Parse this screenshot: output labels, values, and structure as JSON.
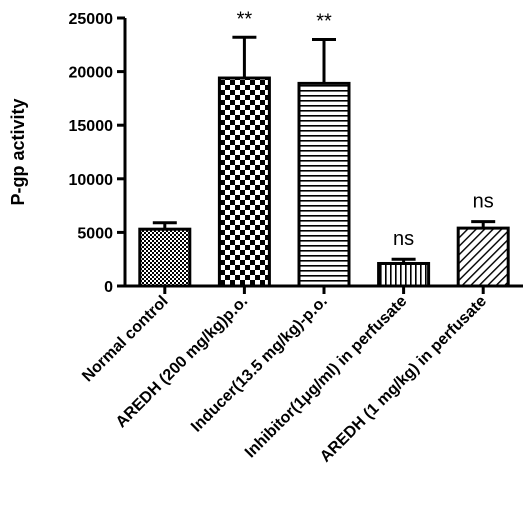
{
  "chart_data": {
    "type": "bar",
    "ylabel": "P-gp activity",
    "xlabel": "",
    "ylim": [
      0,
      25000
    ],
    "yticks": [
      0,
      5000,
      10000,
      15000,
      20000,
      25000
    ],
    "categories": [
      "Normal control",
      "AREDH (200 mg/kg)p.o.",
      "Inducer(13.5 mg/kg)-p.o.",
      "Inhibitor(1μg/ml) in perfusate",
      "AREDH (1 mg/kg) in perfusate"
    ],
    "values": [
      5300,
      19400,
      18900,
      2100,
      5400
    ],
    "errors": [
      600,
      3800,
      4100,
      400,
      600
    ],
    "significance": [
      "",
      "**",
      "**",
      "ns",
      "ns"
    ],
    "patterns": [
      "crosshatch-fine",
      "checkerboard",
      "horizontal-lines",
      "vertical-lines",
      "diagonal-lines"
    ],
    "bar_fill_color": "#000000",
    "grid": false,
    "legend": "none"
  }
}
